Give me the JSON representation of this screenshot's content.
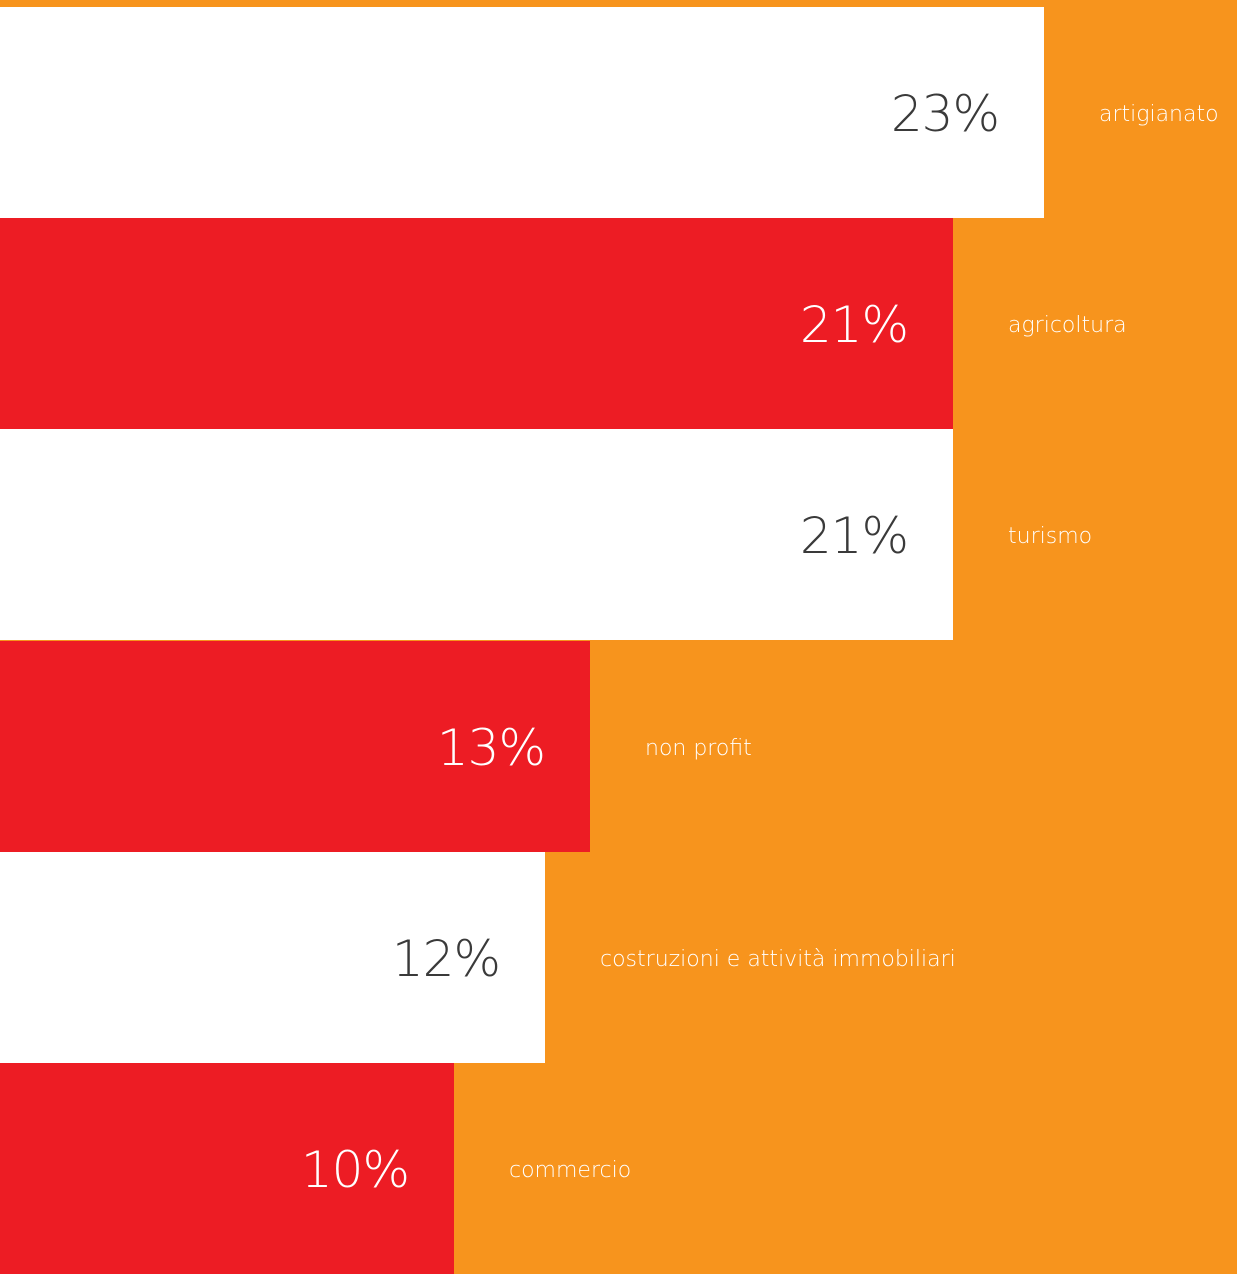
{
  "chart_data": {
    "type": "bar",
    "orientation": "horizontal",
    "categories": [
      "artigianato",
      "agricoltura",
      "turismo",
      "non profit",
      "costruzioni e attività immobiliari",
      "commercio"
    ],
    "values": [
      23,
      21,
      21,
      13,
      12,
      10
    ],
    "value_labels": [
      "23%",
      "21%",
      "21%",
      "13%",
      "12%",
      "10%"
    ],
    "unit": "%",
    "xlim": [
      0,
      27.25
    ],
    "grid": false,
    "legend": "none"
  },
  "colors": {
    "background": "#F7941D",
    "bar_light": "#FFFFFF",
    "bar_dark": "#ED1C24",
    "value_on_light": "#3A3A3A",
    "value_on_dark": "#FFFFFF",
    "category_text": "#FFFFFF"
  }
}
